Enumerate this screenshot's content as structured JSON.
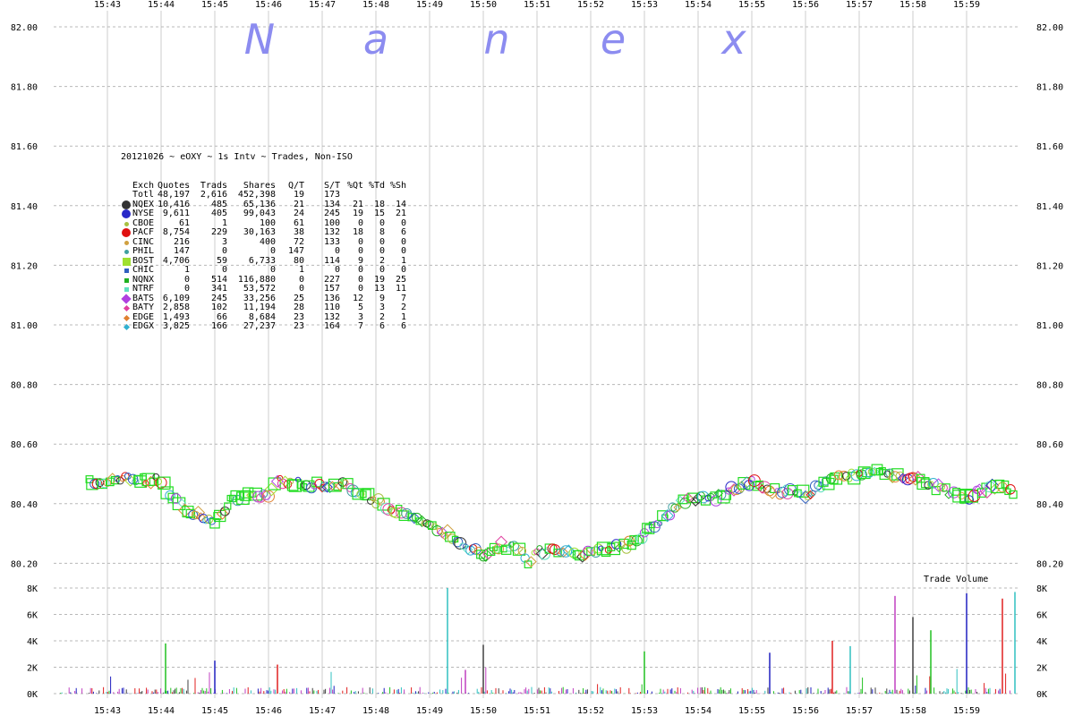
{
  "watermark": [
    "N",
    "a",
    "n",
    "e",
    "x"
  ],
  "chart_data": {
    "type": "scatter",
    "title": "20121026 ~ eOXY ~ 1s Intv ~ Trades, Non-ISO",
    "x_ticks": [
      "15:43",
      "15:44",
      "15:45",
      "15:46",
      "15:47",
      "15:48",
      "15:49",
      "15:50",
      "15:51",
      "15:52",
      "15:53",
      "15:54",
      "15:55",
      "15:56",
      "15:57",
      "15:58",
      "15:59"
    ],
    "price_ticks": [
      "82.00",
      "81.80",
      "81.60",
      "81.40",
      "81.20",
      "81.00",
      "80.80",
      "80.60",
      "80.40",
      "80.20"
    ],
    "price_range": [
      80.15,
      82.0
    ],
    "volume_label": "Trade Volume",
    "volume_ticks": [
      "8K",
      "6K",
      "4K",
      "2K",
      "0K"
    ],
    "volume_range": [
      0,
      8000
    ],
    "grid": true,
    "price_path": [
      [
        "15:42:40",
        80.47
      ],
      [
        "15:43:00",
        80.48
      ],
      [
        "15:43:20",
        80.49
      ],
      [
        "15:43:40",
        80.48
      ],
      [
        "15:44:00",
        80.48
      ],
      [
        "15:44:10",
        80.42
      ],
      [
        "15:44:20",
        80.4
      ],
      [
        "15:44:30",
        80.38
      ],
      [
        "15:44:50",
        80.35
      ],
      [
        "15:45:00",
        80.34
      ],
      [
        "15:45:20",
        80.42
      ],
      [
        "15:45:40",
        80.43
      ],
      [
        "15:46:00",
        80.43
      ],
      [
        "15:46:10",
        80.48
      ],
      [
        "15:46:30",
        80.47
      ],
      [
        "15:47:00",
        80.46
      ],
      [
        "15:47:20",
        80.47
      ],
      [
        "15:47:40",
        80.44
      ],
      [
        "15:48:00",
        80.41
      ],
      [
        "15:48:20",
        80.38
      ],
      [
        "15:48:40",
        80.36
      ],
      [
        "15:49:00",
        80.32
      ],
      [
        "15:49:20",
        80.3
      ],
      [
        "15:49:40",
        80.26
      ],
      [
        "15:50:00",
        80.22
      ],
      [
        "15:50:20",
        80.26
      ],
      [
        "15:50:40",
        80.25
      ],
      [
        "15:50:50",
        80.2
      ],
      [
        "15:51:00",
        80.24
      ],
      [
        "15:51:20",
        80.24
      ],
      [
        "15:52:00",
        80.23
      ],
      [
        "15:52:20",
        80.25
      ],
      [
        "15:52:40",
        80.26
      ],
      [
        "15:53:00",
        80.3
      ],
      [
        "15:53:20",
        80.35
      ],
      [
        "15:53:40",
        80.4
      ],
      [
        "15:54:00",
        80.42
      ],
      [
        "15:54:20",
        80.42
      ],
      [
        "15:54:40",
        80.45
      ],
      [
        "15:55:00",
        80.47
      ],
      [
        "15:55:20",
        80.44
      ],
      [
        "15:55:40",
        80.44
      ],
      [
        "15:56:00",
        80.43
      ],
      [
        "15:56:20",
        80.47
      ],
      [
        "15:56:40",
        80.49
      ],
      [
        "15:57:00",
        80.5
      ],
      [
        "15:57:20",
        80.52
      ],
      [
        "15:57:40",
        80.49
      ],
      [
        "15:58:00",
        80.49
      ],
      [
        "15:58:20",
        80.46
      ],
      [
        "15:58:40",
        80.44
      ],
      [
        "15:59:00",
        80.42
      ],
      [
        "15:59:20",
        80.45
      ],
      [
        "15:59:40",
        80.46
      ],
      [
        "15:59:55",
        80.43
      ]
    ],
    "volume_spikes": [
      [
        "15:44:05",
        3800
      ],
      [
        "15:45:00",
        2500
      ],
      [
        "15:46:10",
        2200
      ],
      [
        "15:49:20",
        8000
      ],
      [
        "15:49:40",
        1800
      ],
      [
        "15:50:00",
        3700
      ],
      [
        "15:53:00",
        3200
      ],
      [
        "15:55:20",
        3100
      ],
      [
        "15:56:30",
        4000
      ],
      [
        "15:56:50",
        3600
      ],
      [
        "15:57:40",
        7400
      ],
      [
        "15:58:00",
        5800
      ],
      [
        "15:58:20",
        4800
      ],
      [
        "15:59:00",
        7600
      ],
      [
        "15:59:40",
        7200
      ],
      [
        "16:00:00",
        7700
      ]
    ],
    "legend": {
      "header": [
        "Exch",
        "Quotes",
        "Trads",
        "Shares",
        "Q/T",
        "S/T",
        "%Qt",
        "%Td",
        "%Sh"
      ],
      "total": [
        "Totl",
        "48,197",
        "2,616",
        "452,398",
        "19",
        "173",
        "",
        "",
        ""
      ],
      "rows": [
        {
          "exch": "NQEX",
          "color": "#333333",
          "marker": "circle-lg",
          "cells": [
            "10,416",
            "485",
            "65,136",
            "21",
            "134",
            "21",
            "18",
            "14"
          ]
        },
        {
          "exch": "NYSE",
          "color": "#2828c8",
          "marker": "circle-lg",
          "cells": [
            "9,611",
            "405",
            "99,043",
            "24",
            "245",
            "19",
            "15",
            "21"
          ]
        },
        {
          "exch": "CBOE",
          "color": "#a8c040",
          "marker": "circle-sm",
          "cells": [
            "61",
            "1",
            "100",
            "61",
            "100",
            "0",
            "0",
            "0"
          ]
        },
        {
          "exch": "PACF",
          "color": "#e01010",
          "marker": "circle-lg",
          "cells": [
            "8,754",
            "229",
            "30,163",
            "38",
            "132",
            "18",
            "8",
            "6"
          ]
        },
        {
          "exch": "CINC",
          "color": "#d0a040",
          "marker": "circle-sm",
          "cells": [
            "216",
            "3",
            "400",
            "72",
            "133",
            "0",
            "0",
            "0"
          ]
        },
        {
          "exch": "PHIL",
          "color": "#40a0a0",
          "marker": "circle-sm",
          "cells": [
            "147",
            "0",
            "0",
            "147",
            "0",
            "0",
            "0",
            "0"
          ]
        },
        {
          "exch": "BOST",
          "color": "#a0e030",
          "marker": "square",
          "cells": [
            "4,706",
            "59",
            "6,733",
            "80",
            "114",
            "9",
            "2",
            "1"
          ]
        },
        {
          "exch": "CHIC",
          "color": "#3060c0",
          "marker": "square-sm",
          "cells": [
            "1",
            "0",
            "0",
            "1",
            "0",
            "0",
            "0",
            "0"
          ]
        },
        {
          "exch": "NQNX",
          "color": "#20b020",
          "marker": "square-sm",
          "cells": [
            "0",
            "514",
            "116,880",
            "0",
            "227",
            "0",
            "19",
            "25"
          ]
        },
        {
          "exch": "NTRF",
          "color": "#60e0c0",
          "marker": "square-sm",
          "cells": [
            "0",
            "341",
            "53,572",
            "0",
            "157",
            "0",
            "13",
            "11"
          ]
        },
        {
          "exch": "BATS",
          "color": "#b040e0",
          "marker": "diamond",
          "cells": [
            "6,109",
            "245",
            "33,256",
            "25",
            "136",
            "12",
            "9",
            "7"
          ]
        },
        {
          "exch": "BATY",
          "color": "#e040a0",
          "marker": "diamond-sm",
          "cells": [
            "2,858",
            "102",
            "11,194",
            "28",
            "110",
            "5",
            "3",
            "2"
          ]
        },
        {
          "exch": "EDGE",
          "color": "#e08030",
          "marker": "diamond-sm",
          "cells": [
            "1,493",
            "66",
            "8,684",
            "23",
            "132",
            "3",
            "2",
            "1"
          ]
        },
        {
          "exch": "EDGX",
          "color": "#30b0d0",
          "marker": "diamond-sm",
          "cells": [
            "3,825",
            "166",
            "27,237",
            "23",
            "164",
            "7",
            "6",
            "6"
          ]
        }
      ]
    }
  }
}
